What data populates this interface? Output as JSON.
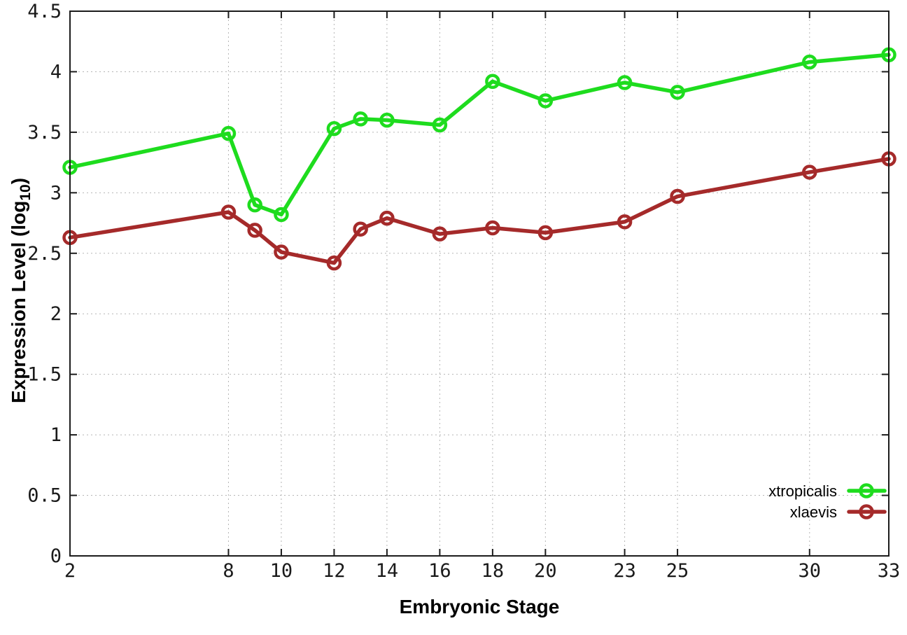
{
  "chart_data": {
    "type": "line",
    "title": "",
    "xlabel": "Embryonic Stage",
    "ylabel": "Expression Level (log10)",
    "ylabel_parts": {
      "prefix": "Expression Level (log",
      "sub": "10",
      "suffix": ")"
    },
    "x": [
      2,
      8,
      9,
      10,
      12,
      13,
      14,
      16,
      18,
      20,
      23,
      25,
      30,
      33
    ],
    "series": [
      {
        "name": "xtropicalis",
        "color": "#1edc1e",
        "values": [
          3.21,
          3.49,
          2.9,
          2.82,
          3.53,
          3.61,
          3.6,
          3.56,
          3.92,
          3.76,
          3.91,
          3.83,
          4.08,
          4.14
        ]
      },
      {
        "name": "xlaevis",
        "color": "#a52a2a",
        "values": [
          2.63,
          2.84,
          2.69,
          2.51,
          2.42,
          2.7,
          2.79,
          2.66,
          2.71,
          2.67,
          2.76,
          2.97,
          3.17,
          3.28
        ]
      }
    ],
    "xticks": [
      2,
      8,
      10,
      12,
      14,
      16,
      18,
      20,
      23,
      25,
      30,
      33
    ],
    "yticks": [
      0,
      0.5,
      1,
      1.5,
      2,
      2.5,
      3,
      3.5,
      4,
      4.5
    ],
    "xlim": [
      2,
      33
    ],
    "ylim": [
      0,
      4.5
    ],
    "grid": true,
    "legend_position": "bottom-right",
    "colors": {
      "border": "#1c1c1c",
      "grid": "#b5b5b5",
      "background": "#ffffff",
      "text": "#000000"
    }
  }
}
